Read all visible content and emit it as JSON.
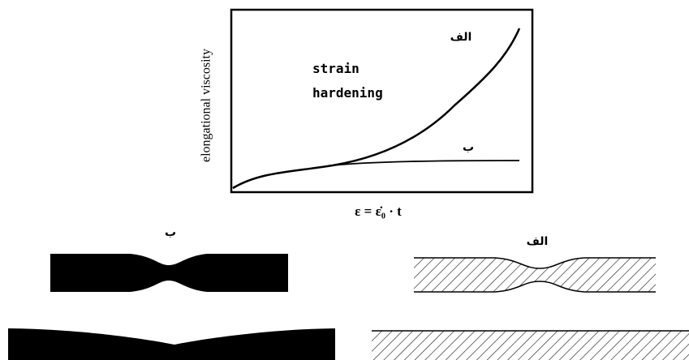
{
  "graph": {
    "y_label": "elongational viscosity",
    "x_label": "ε = ε̇₀ · t",
    "annotation": [
      "strain",
      "hardening"
    ],
    "curve_labels": [
      "الف",
      "ب"
    ]
  },
  "specimens": {
    "labels": [
      "ب",
      "الف"
    ]
  }
}
